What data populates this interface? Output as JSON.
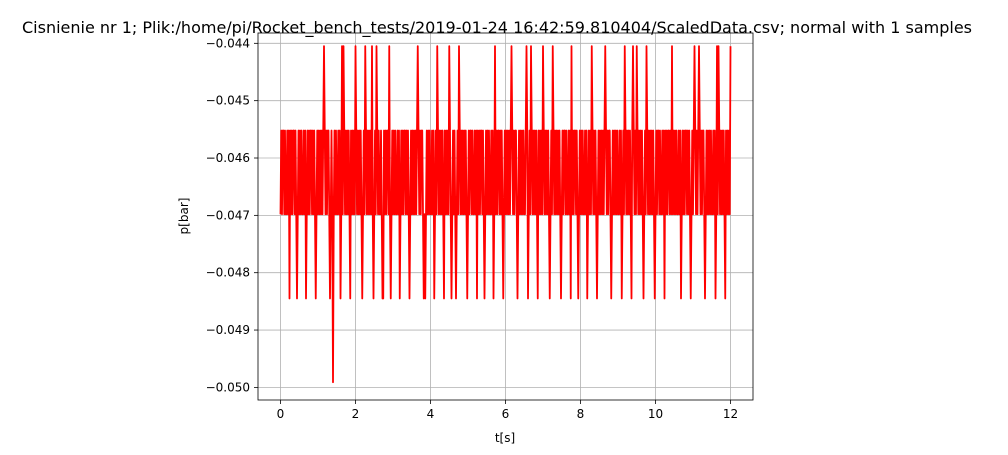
{
  "chart_data": {
    "type": "line",
    "title": "Cisnienie nr 1; Plik:/home/pi/Rocket_bench_tests/2019-01-24 16:42:59.810404/ScaledData.csv; normal with 1 samples",
    "xlabel": "t[s]",
    "ylabel": "p[bar]",
    "xlim": [
      -0.6,
      12.6
    ],
    "ylim": [
      -0.05022,
      -0.04382
    ],
    "xticks": [
      0,
      2,
      4,
      6,
      8,
      10,
      12
    ],
    "xtick_labels": [
      "0",
      "2",
      "4",
      "6",
      "8",
      "10",
      "12"
    ],
    "yticks": [
      -0.05,
      -0.049,
      -0.048,
      -0.047,
      -0.046,
      -0.045,
      -0.044
    ],
    "ytick_labels": [
      "−0.050",
      "−0.049",
      "−0.048",
      "−0.047",
      "−0.046",
      "−0.045",
      "−0.044"
    ],
    "grid": true,
    "color": "#ff0000",
    "levels": [
      -0.04405,
      -0.04552,
      -0.04698,
      -0.04845,
      -0.04991
    ],
    "series": [
      {
        "x_start": 0,
        "x_step": 0.02,
        "x_end": 12,
        "level_index_pattern": [
          2,
          1,
          2,
          1,
          1,
          2,
          1,
          2,
          2,
          1,
          2,
          1,
          3,
          1,
          2,
          1,
          2,
          1,
          1,
          2,
          1,
          2,
          3,
          2,
          1,
          2,
          1,
          2,
          1,
          2,
          2,
          1,
          2,
          1,
          3,
          2,
          1,
          2,
          1,
          2,
          1,
          1,
          2,
          1,
          2,
          1,
          2,
          3,
          2,
          1,
          2,
          1,
          2,
          1,
          2,
          1,
          2,
          1,
          0,
          1,
          2,
          1,
          2,
          1,
          1,
          2,
          3,
          2,
          1,
          2,
          1,
          2,
          1,
          2,
          1,
          2,
          2,
          1,
          2,
          1,
          3,
          2,
          1,
          2,
          0,
          1,
          2,
          1,
          2,
          1,
          2,
          1,
          2,
          3,
          1,
          2,
          1,
          2,
          1,
          2,
          0,
          1,
          2,
          1,
          2,
          1,
          2,
          1,
          2,
          3,
          2,
          1,
          2,
          0,
          1,
          2,
          1,
          2,
          1,
          2,
          1,
          2,
          1,
          2,
          3
        ],
        "spikes": [
          {
            "x": 1.4,
            "y": -0.04991
          },
          {
            "x": 1.64,
            "y": -0.04405
          },
          {
            "x": 2.44,
            "y": -0.04405
          },
          {
            "x": 2.56,
            "y": -0.04405
          },
          {
            "x": 2.72,
            "y": -0.04845
          },
          {
            "x": 2.9,
            "y": -0.04405
          },
          {
            "x": 3.86,
            "y": -0.04845
          },
          {
            "x": 4.56,
            "y": -0.04845
          },
          {
            "x": 5.72,
            "y": -0.04405
          },
          {
            "x": 6.56,
            "y": -0.04405
          },
          {
            "x": 7.76,
            "y": -0.04405
          },
          {
            "x": 8.3,
            "y": -0.04405
          },
          {
            "x": 9.4,
            "y": -0.04405
          },
          {
            "x": 10.44,
            "y": -0.04405
          },
          {
            "x": 11.04,
            "y": -0.04405
          },
          {
            "x": 11.64,
            "y": -0.04405
          }
        ]
      }
    ]
  }
}
